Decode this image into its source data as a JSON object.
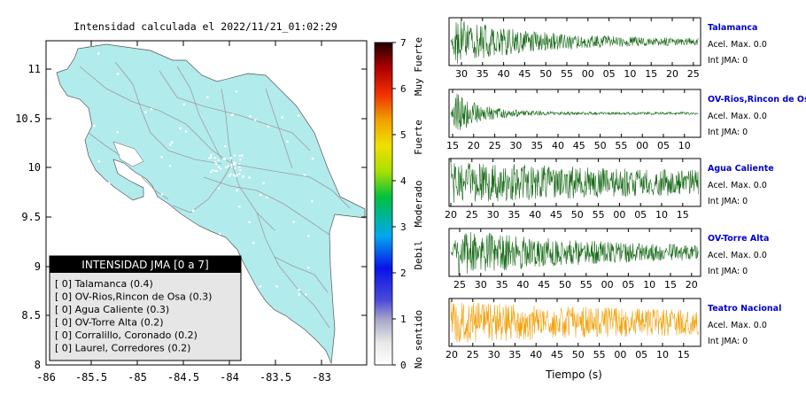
{
  "title": "Intensidad calculada el 2022/11/21_01:02:29",
  "map": {
    "x_ticks": [
      "-86",
      "-85.5",
      "-85",
      "-84.5",
      "-84",
      "-83.5",
      "-83"
    ],
    "y_ticks": [
      "11",
      "10.5",
      "10",
      "9.5",
      "9",
      "8.5",
      "8"
    ],
    "xlim": [
      -86,
      -83.5
    ],
    "ylim": [
      8,
      11.3
    ],
    "land_color": "#b2ebec"
  },
  "legend": {
    "header": "INTENSIDAD JMA [0 a 7]",
    "items": [
      "[ 0]  Talamanca (0.4)",
      "[ 0]  OV-Rios,Rincon de Osa (0.3)",
      "[ 0]  Agua Caliente (0.3)",
      "[ 0]  OV-Torre Alta (0.2)",
      "[ 0]  Corralillo, Coronado (0.2)",
      "[ 0]  Laurel, Corredores (0.2)"
    ]
  },
  "colorbar": {
    "ticks": [
      "0",
      "1",
      "2",
      "3",
      "4",
      "5",
      "6",
      "7"
    ],
    "range": [
      0,
      7
    ],
    "labels": [
      "No sentido",
      "Debil",
      "Moderado",
      "Fuerte",
      "Muy Fuerte"
    ]
  },
  "stations": [
    {
      "name": "Talamanca",
      "acel": "Acel. Max. 0.0",
      "int": "Int JMA: 0",
      "color": "#1a6b1a",
      "ticks": [
        "30",
        "35",
        "40",
        "45",
        "50",
        "55",
        "00",
        "05",
        "10",
        "15",
        "20",
        "25"
      ],
      "envelope": "decay_fast"
    },
    {
      "name": "OV-Rios,Rincon de Osa",
      "acel": "Acel. Max. 0.0",
      "int": "Int JMA: 0",
      "color": "#1a6b1a",
      "ticks": [
        "15",
        "20",
        "25",
        "30",
        "35",
        "40",
        "45",
        "50",
        "55",
        "00",
        "05",
        "10"
      ],
      "envelope": "decay_sharp"
    },
    {
      "name": "Agua Caliente",
      "acel": "Acel. Max. 0.0",
      "int": "Int JMA: 0",
      "color": "#1a6b1a",
      "ticks": [
        "20",
        "25",
        "30",
        "35",
        "40",
        "45",
        "50",
        "55",
        "00",
        "05",
        "10",
        "15"
      ],
      "envelope": "noisy"
    },
    {
      "name": "OV-Torre Alta",
      "acel": "Acel. Max. 0.0",
      "int": "Int JMA: 0",
      "color": "#1a6b1a",
      "ticks": [
        "25",
        "30",
        "35",
        "40",
        "45",
        "50",
        "55",
        "00",
        "05",
        "10",
        "15",
        "20"
      ],
      "envelope": "decay_slow"
    },
    {
      "name": "Teatro Nacional",
      "acel": "Acel. Max. 0.0",
      "int": "Int JMA: 0",
      "color": "#f2a20c",
      "ticks": [
        "20",
        "25",
        "30",
        "35",
        "40",
        "45",
        "50",
        "55",
        "00",
        "05",
        "10",
        "15"
      ],
      "envelope": "noisy"
    }
  ],
  "xlabel": "Tiempo (s)",
  "chart_data": [
    {
      "type": "heatmap",
      "title": "Intensidad calculada el 2022/11/21_01:02:29",
      "xlabel": "",
      "ylabel": "",
      "xlim": [
        -86,
        -83.5
      ],
      "ylim": [
        8,
        11.3
      ],
      "colorbar_range": [
        0,
        7
      ],
      "colorbar_labels": [
        "No sentido",
        "Debil",
        "Moderado",
        "Fuerte",
        "Muy Fuerte"
      ],
      "legend_title": "INTENSIDAD JMA [0 a 7]",
      "legend": [
        {
          "station": "Talamanca",
          "intensity": 0,
          "value": 0.4
        },
        {
          "station": "OV-Rios,Rincon de Osa",
          "intensity": 0,
          "value": 0.3
        },
        {
          "station": "Agua Caliente",
          "intensity": 0,
          "value": 0.3
        },
        {
          "station": "OV-Torre Alta",
          "intensity": 0,
          "value": 0.2
        },
        {
          "station": "Corralillo, Coronado",
          "intensity": 0,
          "value": 0.2
        },
        {
          "station": "Laurel, Corredores",
          "intensity": 0,
          "value": 0.2
        }
      ]
    },
    {
      "type": "line",
      "xlabel": "Tiempo (s)",
      "series": [
        {
          "name": "Talamanca",
          "acel_max": 0.0,
          "int_jma": 0
        },
        {
          "name": "OV-Rios,Rincon de Osa",
          "acel_max": 0.0,
          "int_jma": 0
        },
        {
          "name": "Agua Caliente",
          "acel_max": 0.0,
          "int_jma": 0
        },
        {
          "name": "OV-Torre Alta",
          "acel_max": 0.0,
          "int_jma": 0
        },
        {
          "name": "Teatro Nacional",
          "acel_max": 0.0,
          "int_jma": 0
        }
      ]
    }
  ]
}
